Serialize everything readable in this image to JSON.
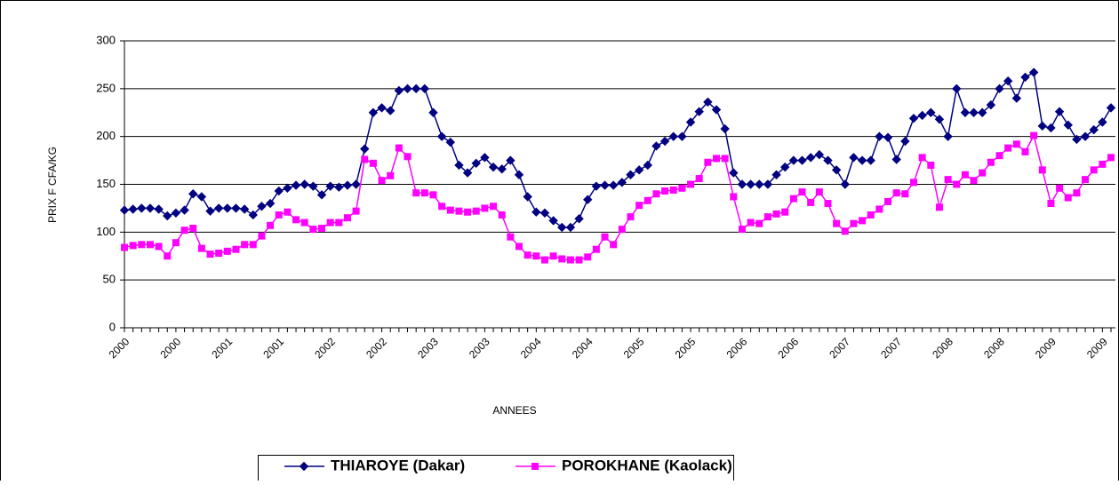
{
  "chart_data": {
    "type": "line",
    "x_label": "ANNEES",
    "y_label": "PRIX F CFA/KG",
    "categories": [
      "2000",
      null,
      null,
      null,
      null,
      null,
      "2000",
      null,
      null,
      null,
      null,
      null,
      "2001",
      null,
      null,
      null,
      null,
      null,
      "2001",
      null,
      null,
      null,
      null,
      null,
      "2002",
      null,
      null,
      null,
      null,
      null,
      "2002",
      null,
      null,
      null,
      null,
      null,
      "2003",
      null,
      null,
      null,
      null,
      null,
      "2003",
      null,
      null,
      null,
      null,
      null,
      "2004",
      null,
      null,
      null,
      null,
      null,
      "2004",
      null,
      null,
      null,
      null,
      null,
      "2005",
      null,
      null,
      null,
      null,
      null,
      "2005",
      null,
      null,
      null,
      null,
      null,
      "2006",
      null,
      null,
      null,
      null,
      null,
      "2006",
      null,
      null,
      null,
      null,
      null,
      "2007",
      null,
      null,
      null,
      null,
      null,
      "2007",
      null,
      null,
      null,
      null,
      null,
      "2008",
      null,
      null,
      null,
      null,
      null,
      "2008",
      null,
      null,
      null,
      null,
      null,
      "2009",
      null,
      null,
      null,
      null,
      null,
      "2009",
      null
    ],
    "series": [
      {
        "name": "THIAROYE (Dakar)",
        "color": "#000080",
        "marker": "diamond",
        "values": [
          123,
          124,
          125,
          125,
          124,
          117,
          120,
          123,
          140,
          137,
          122,
          125,
          125,
          125,
          124,
          118,
          127,
          130,
          143,
          146,
          149,
          150,
          148,
          139,
          148,
          147,
          149,
          150,
          187,
          225,
          230,
          227,
          248,
          250,
          250,
          250,
          225,
          200,
          194,
          170,
          162,
          172,
          178,
          168,
          166,
          175,
          160,
          137,
          121,
          120,
          112,
          105,
          105,
          114,
          134,
          148,
          149,
          149,
          152,
          160,
          165,
          170,
          190,
          195,
          200,
          200,
          215,
          226,
          236,
          228,
          208,
          162,
          150,
          150,
          150,
          150,
          160,
          168,
          175,
          175,
          178,
          181,
          175,
          165,
          150,
          178,
          175,
          175,
          200,
          199,
          176,
          195,
          219,
          222,
          225,
          218,
          200,
          250,
          225,
          225,
          225,
          233,
          250,
          258,
          240,
          262,
          267,
          211,
          209,
          226,
          212,
          197,
          200,
          207,
          215,
          230
        ]
      },
      {
        "name": "POROKHANE (Kaolack)",
        "color": "#ff00ff",
        "marker": "square",
        "values": [
          84,
          86,
          87,
          87,
          85,
          75,
          89,
          102,
          104,
          83,
          77,
          78,
          80,
          82,
          87,
          87,
          96,
          107,
          118,
          121,
          113,
          110,
          103,
          104,
          110,
          110,
          115,
          122,
          176,
          172,
          154,
          159,
          188,
          179,
          141,
          141,
          139,
          127,
          123,
          122,
          121,
          122,
          125,
          127,
          118,
          95,
          85,
          76,
          75,
          71,
          75,
          72,
          71,
          71,
          74,
          82,
          95,
          87,
          103,
          116,
          128,
          133,
          140,
          143,
          144,
          146,
          150,
          156,
          173,
          177,
          177,
          137,
          103,
          110,
          109,
          116,
          119,
          121,
          135,
          142,
          131,
          142,
          130,
          109,
          101,
          109,
          112,
          118,
          124,
          132,
          141,
          140,
          152,
          178,
          170,
          126,
          155,
          150,
          160,
          154,
          162,
          173,
          180,
          188,
          192,
          184,
          201,
          165,
          130,
          146,
          136,
          141,
          155,
          165,
          171,
          178
        ]
      }
    ],
    "ylim": [
      0,
      300
    ],
    "yticks": [
      0,
      50,
      100,
      150,
      200,
      250,
      300
    ],
    "grid": true,
    "legend": "bottom"
  }
}
